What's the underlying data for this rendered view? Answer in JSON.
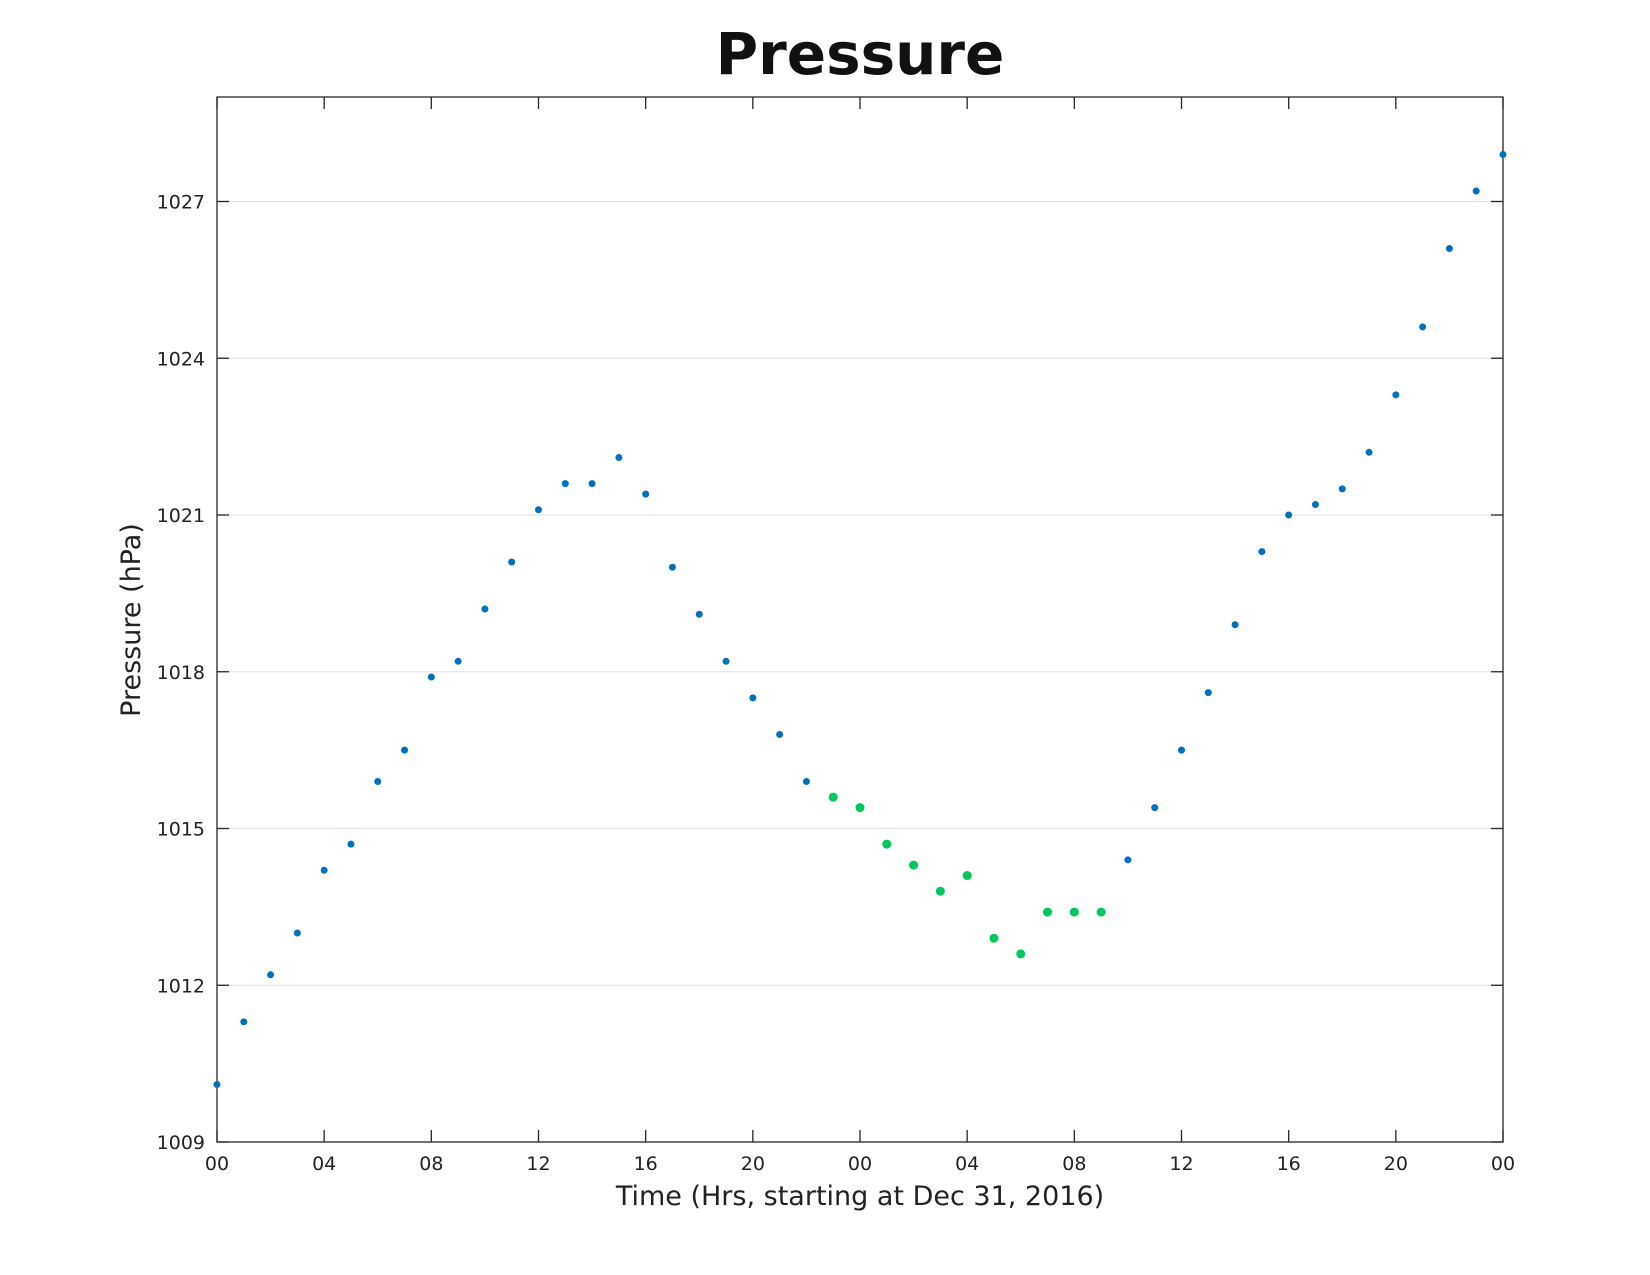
{
  "chart_data": {
    "type": "scatter",
    "title": "Pressure",
    "xlabel": "Time (Hrs, starting at Dec 31, 2016)",
    "ylabel": "Pressure (hPa)",
    "xlim": [
      0,
      48
    ],
    "ylim": [
      1009,
      1029
    ],
    "x_ticks": [
      0,
      4,
      8,
      12,
      16,
      20,
      24,
      28,
      32,
      36,
      40,
      44,
      48
    ],
    "x_tick_labels": [
      "00",
      "04",
      "08",
      "12",
      "16",
      "20",
      "00",
      "04",
      "08",
      "12",
      "16",
      "20",
      "00"
    ],
    "y_ticks": [
      1009,
      1012,
      1015,
      1018,
      1021,
      1024,
      1027
    ],
    "y_tick_labels": [
      "1009",
      "1012",
      "1015",
      "1018",
      "1021",
      "1024",
      "1027"
    ],
    "grid": "horizontal",
    "colors": {
      "default": "#0072bd",
      "highlight": "#00c85a"
    },
    "series": [
      {
        "color": "#0072bd",
        "x": [
          0,
          1,
          2,
          3,
          4,
          5,
          6,
          7,
          8,
          9,
          10,
          11,
          12,
          13,
          14,
          15,
          16,
          17,
          18,
          19,
          20,
          21,
          22
        ],
        "y": [
          1010.1,
          1011.3,
          1012.2,
          1013.0,
          1014.2,
          1014.7,
          1015.9,
          1016.5,
          1017.9,
          1018.2,
          1019.2,
          1020.1,
          1021.1,
          1021.6,
          1021.6,
          1022.1,
          1021.4,
          1020.0,
          1019.1,
          1018.2,
          1017.5,
          1016.8,
          1015.9
        ]
      },
      {
        "color": "#00c85a",
        "x": [
          23,
          24,
          25,
          26,
          27,
          28,
          29,
          30,
          31,
          32,
          33
        ],
        "y": [
          1015.6,
          1015.4,
          1014.7,
          1014.3,
          1013.8,
          1014.1,
          1012.9,
          1012.6,
          1013.4,
          1013.4,
          1013.4
        ]
      },
      {
        "color": "#0072bd",
        "x": [
          34,
          35,
          36,
          37,
          38,
          39,
          40,
          41,
          42,
          43,
          44,
          45,
          46,
          47,
          48
        ],
        "y": [
          1014.4,
          1015.4,
          1016.5,
          1017.6,
          1018.9,
          1020.3,
          1021.0,
          1021.2,
          1021.5,
          1022.2,
          1023.3,
          1024.6,
          1026.1,
          1027.2,
          1027.9
        ]
      }
    ]
  }
}
